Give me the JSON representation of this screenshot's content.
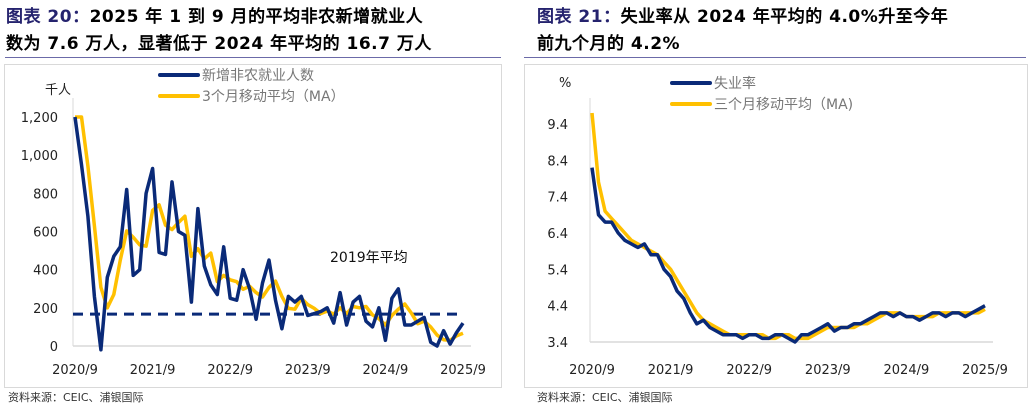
{
  "left": {
    "title_label": "图表 20：",
    "title_line1": "2025 年 1 到 9 月的平均非农新增就业人",
    "title_line2": "数为 7.6 万人，显著低于 2024 年平均的 16.7 万人",
    "source": "资料来源：CEIC、浦银国际"
  },
  "right": {
    "title_label": "图表 21：",
    "title_line1": "失业率从 2024 年平均的 4.0%升至今年",
    "title_line2": "前九个月的 4.2%",
    "source": "资料来源：CEIC、浦银国际"
  },
  "chart_data": [
    {
      "type": "line",
      "ylabel": "千人",
      "ylim": [
        0,
        1200
      ],
      "yticks": [
        "0",
        "200",
        "400",
        "600",
        "800",
        "1,000",
        "1,200"
      ],
      "xticks": [
        "2020/9",
        "2021/9",
        "2022/9",
        "2023/9",
        "2024/9",
        "2025/9"
      ],
      "x_start": "2020/9",
      "x_end": "2025/9",
      "frequency": "monthly",
      "legend_position": "top",
      "reference_line": {
        "value": 167,
        "label": "2019年平均",
        "style": "dashed",
        "color": "#0a2a78"
      },
      "series": [
        {
          "name": "新增非农就业人数",
          "color": "#0a2a78",
          "values": [
            1200,
            950,
            680,
            260,
            -20,
            360,
            470,
            520,
            820,
            370,
            400,
            800,
            930,
            490,
            480,
            860,
            600,
            580,
            230,
            720,
            420,
            320,
            270,
            520,
            250,
            240,
            400,
            300,
            140,
            330,
            450,
            240,
            90,
            260,
            230,
            260,
            160,
            170,
            180,
            200,
            120,
            280,
            110,
            230,
            260,
            130,
            100,
            200,
            30,
            250,
            300,
            110,
            110,
            130,
            150,
            20,
            0,
            80,
            10,
            70,
            120
          ]
        },
        {
          "name": "3个月移动平均（MA）",
          "color": "#ffc000",
          "values": [
            1200,
            1200,
            943,
            630,
            307,
            200,
            270,
            450,
            603,
            570,
            530,
            523,
            710,
            740,
            633,
            610,
            647,
            680,
            470,
            510,
            457,
            487,
            337,
            370,
            347,
            337,
            297,
            313,
            280,
            257,
            307,
            340,
            260,
            197,
            193,
            250,
            217,
            197,
            170,
            183,
            167,
            200,
            170,
            207,
            200,
            207,
            163,
            143,
            110,
            160,
            193,
            220,
            173,
            117,
            130,
            100,
            57,
            33,
            30,
            53,
            67
          ]
        }
      ]
    },
    {
      "type": "line",
      "ylabel": "%",
      "ylim": [
        3.4,
        10.0
      ],
      "yticks": [
        "3.4",
        "4.4",
        "5.4",
        "6.4",
        "7.4",
        "8.4",
        "9.4"
      ],
      "xticks": [
        "2020/9",
        "2021/9",
        "2022/9",
        "2023/9",
        "2024/9",
        "2025/9"
      ],
      "x_start": "2020/9",
      "x_end": "2025/9",
      "frequency": "monthly",
      "legend_position": "top",
      "series": [
        {
          "name": "失业率",
          "color": "#0a2a78",
          "values": [
            8.2,
            6.9,
            6.7,
            6.7,
            6.4,
            6.2,
            6.1,
            6.0,
            6.1,
            5.8,
            5.8,
            5.4,
            5.2,
            4.8,
            4.6,
            4.2,
            3.9,
            4.0,
            3.8,
            3.7,
            3.6,
            3.6,
            3.6,
            3.5,
            3.6,
            3.6,
            3.5,
            3.5,
            3.6,
            3.6,
            3.5,
            3.4,
            3.6,
            3.6,
            3.7,
            3.8,
            3.9,
            3.7,
            3.8,
            3.8,
            3.9,
            3.9,
            4.0,
            4.1,
            4.2,
            4.2,
            4.1,
            4.2,
            4.1,
            4.1,
            4.0,
            4.1,
            4.2,
            4.2,
            4.1,
            4.2,
            4.2,
            4.1,
            4.2,
            4.3,
            4.4
          ]
        },
        {
          "name": "三个月移动平均（MA)",
          "color": "#ffc000",
          "values": [
            9.8,
            7.8,
            7.0,
            6.8,
            6.6,
            6.4,
            6.2,
            6.1,
            6.0,
            5.9,
            5.8,
            5.6,
            5.4,
            5.1,
            4.8,
            4.5,
            4.2,
            4.0,
            3.9,
            3.8,
            3.7,
            3.6,
            3.6,
            3.6,
            3.6,
            3.6,
            3.6,
            3.5,
            3.5,
            3.6,
            3.6,
            3.5,
            3.5,
            3.5,
            3.6,
            3.7,
            3.8,
            3.8,
            3.8,
            3.8,
            3.8,
            3.9,
            3.9,
            4.0,
            4.1,
            4.2,
            4.2,
            4.2,
            4.1,
            4.1,
            4.1,
            4.1,
            4.1,
            4.2,
            4.2,
            4.2,
            4.2,
            4.2,
            4.2,
            4.2,
            4.3
          ]
        }
      ]
    }
  ]
}
